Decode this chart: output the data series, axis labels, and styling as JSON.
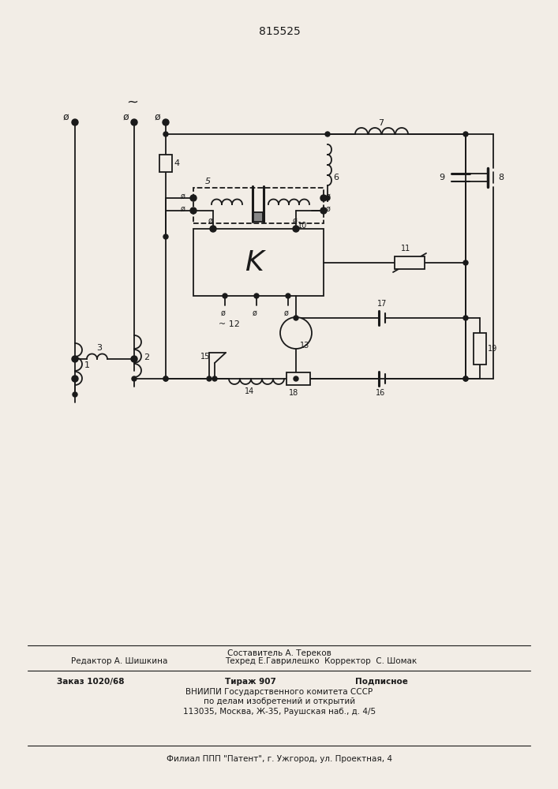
{
  "title": "815525",
  "bg_color": "#f2ede6",
  "line_color": "#1a1a1a",
  "footer": {
    "sestavitel": "Составитель А. Тереков",
    "redaktor": "Редактор А. Шишкина",
    "tehred": "Техред Е.Гаврилешко  Корректор  С. Шомак",
    "zakaz": "Заказ 1020/68",
    "tirazh": "Тираж 907",
    "podpisnoe": "Подписное",
    "vniipи": "ВНИИПИ Государственного комитета СССР",
    "pо_delam": "по делам изобретений и открытий",
    "address": "113035, Москва, Ж-35, Раушская наб., д. 4/5",
    "filial": "Филиал ППП \"Патент\", г. Ужгород, ул. Проектная, 4"
  }
}
